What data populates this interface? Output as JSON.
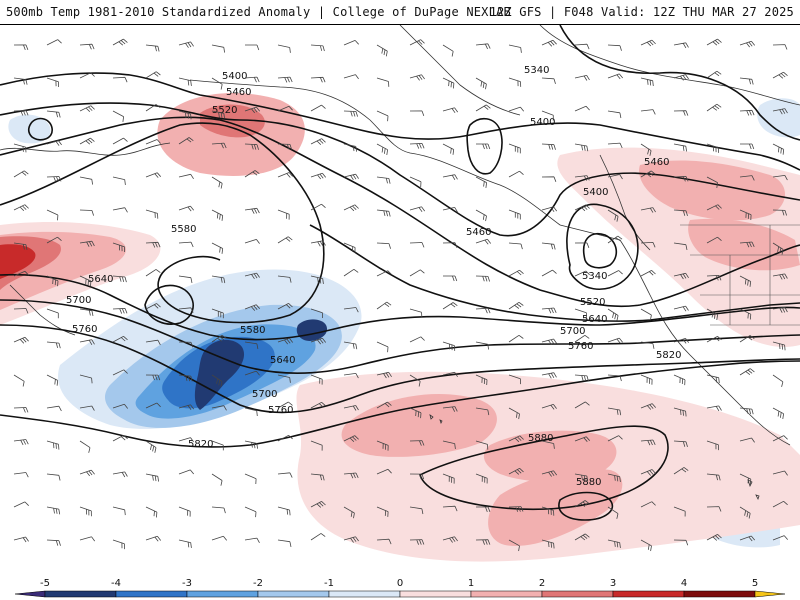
{
  "header": {
    "left": "500mb Temp 1981-2010 Standardized Anomaly | College of DuPage NEXLAB",
    "right": "12Z GFS | F048 Valid: 12Z THU MAR 27 2025"
  },
  "contour_labels": [
    "5340",
    "5400",
    "5460",
    "5520",
    "5580",
    "5640",
    "5700",
    "5760",
    "5820",
    "5880"
  ],
  "colorbar": {
    "ticks": [
      "-5",
      "-4",
      "-3",
      "-2",
      "-1",
      "0",
      "1",
      "2",
      "3",
      "4",
      "5"
    ],
    "colors": [
      "#3a2b78",
      "#213a72",
      "#2f74c7",
      "#5fa2e0",
      "#a4c8ec",
      "#dbe8f6",
      "#f9dede",
      "#f2b0b0",
      "#e07676",
      "#c82a2a",
      "#7d0d0d",
      "#f5c518"
    ]
  },
  "colors": {
    "map_background": "#ffffff",
    "coastline": "#333333",
    "contour": "#111111",
    "wind_barb": "#444444"
  }
}
